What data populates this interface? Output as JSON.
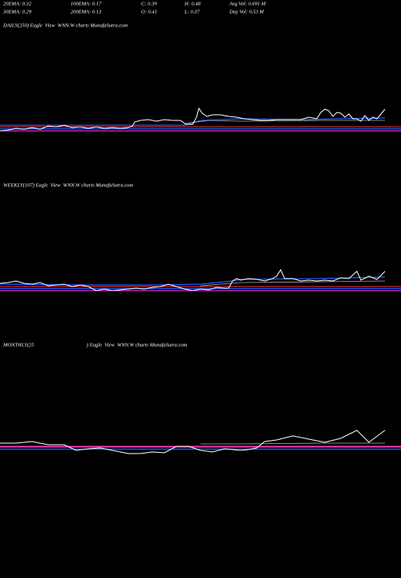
{
  "header": {
    "row1": [
      "20EMA: 0.32",
      "100EMA: 0.17",
      "C: 0.39",
      "H: 0.48",
      "Avg Vol: 0.691 M"
    ],
    "row2": [
      "30EMA: 0.29",
      "200EMA: 0.13",
      "O: 0.41",
      "L: 0.37",
      "Day Vol: 0.53 M"
    ]
  },
  "panels": [
    {
      "label": "DAILY(250) Eagle  View  WNN.W charts MunafaSutra.com"
    },
    {
      "label": "WEEKLY(107) Eagle  View  WNN.W charts MunafaSutra.com"
    },
    {
      "label": "MONTHLY(25",
      "label2": ") Eagle  View  WNN.W charts MunafaSutra.com"
    }
  ]
}
